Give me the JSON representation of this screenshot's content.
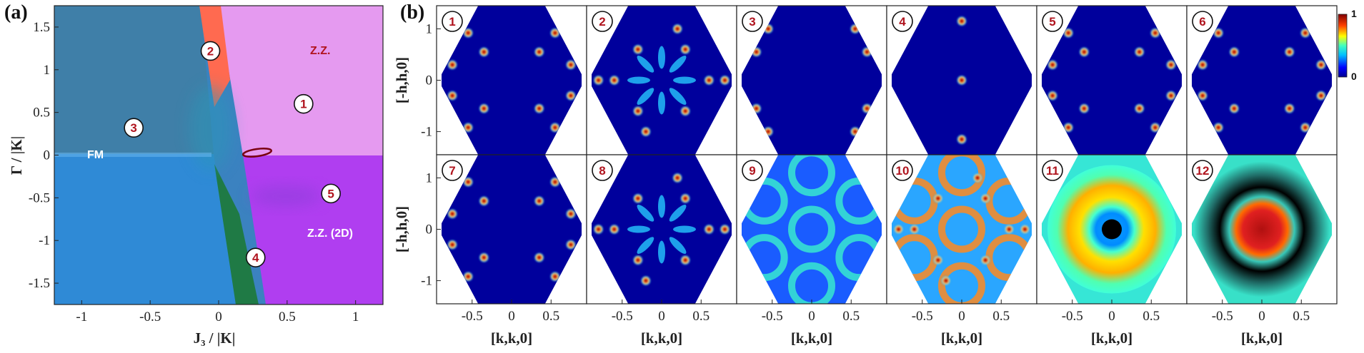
{
  "panel_a": {
    "label": "(a)",
    "xlabel": "J₃ / |K|",
    "ylabel": "Γ / |K|",
    "region_labels": {
      "zz": "Z.Z.",
      "fm": "FM",
      "zz2d": "Z.Z. (2D)"
    },
    "phase_markers": [
      "1",
      "2",
      "3",
      "4",
      "5"
    ]
  },
  "panel_b": {
    "label": "(b)",
    "xlabel": "[k,k,0]",
    "ylabel": "[-h,h,0]",
    "panel_numbers": [
      "1",
      "2",
      "3",
      "4",
      "5",
      "6",
      "7",
      "8",
      "9",
      "10",
      "11",
      "12"
    ],
    "colorbar": {
      "max_label": "1",
      "min_label": "0"
    }
  },
  "chart_data": [
    {
      "type": "heatmap",
      "title": "",
      "xlabel": "J3 / |K|",
      "ylabel": "Γ / |K|",
      "xlim": [
        -1.2,
        1.2
      ],
      "ylim": [
        -1.75,
        1.75
      ],
      "x_ticks": [
        -1,
        -0.5,
        0,
        0.5,
        1
      ],
      "y_ticks": [
        1.5,
        1,
        0.5,
        0,
        -0.5,
        -1,
        -1.5
      ],
      "regions": [
        {
          "name": "Z.Z.",
          "color": "#e596ec"
        },
        {
          "name": "FM",
          "color": "#3f86c1"
        },
        {
          "name": "Z.Z. (2D)",
          "color": "#b03cee"
        },
        {
          "name": "2",
          "color": "#ff6a4f"
        },
        {
          "name": "4",
          "color": "#1e7a3c"
        }
      ],
      "markers": [
        {
          "label": "1",
          "x": 0.62,
          "y": 0.6
        },
        {
          "label": "2",
          "x": -0.06,
          "y": 1.22
        },
        {
          "label": "3",
          "x": -0.62,
          "y": 0.32
        },
        {
          "label": "4",
          "x": 0.27,
          "y": -1.2
        },
        {
          "label": "5",
          "x": 0.82,
          "y": -0.45
        }
      ]
    },
    {
      "type": "heatmap",
      "title": "",
      "xlabel": "[k,k,0]",
      "ylabel": "[-h,h,0]",
      "xlim": [
        -0.95,
        0.95
      ],
      "ylim": [
        -1.45,
        1.45
      ],
      "x_ticks": [
        -0.5,
        0,
        0.5
      ],
      "y_ticks": [
        1,
        0,
        -1
      ],
      "colorbar_range": [
        0,
        1
      ],
      "colormap": "jet",
      "panels": [
        "1",
        "2",
        "3",
        "4",
        "5",
        "6",
        "7",
        "8",
        "9",
        "10",
        "11",
        "12"
      ]
    }
  ]
}
